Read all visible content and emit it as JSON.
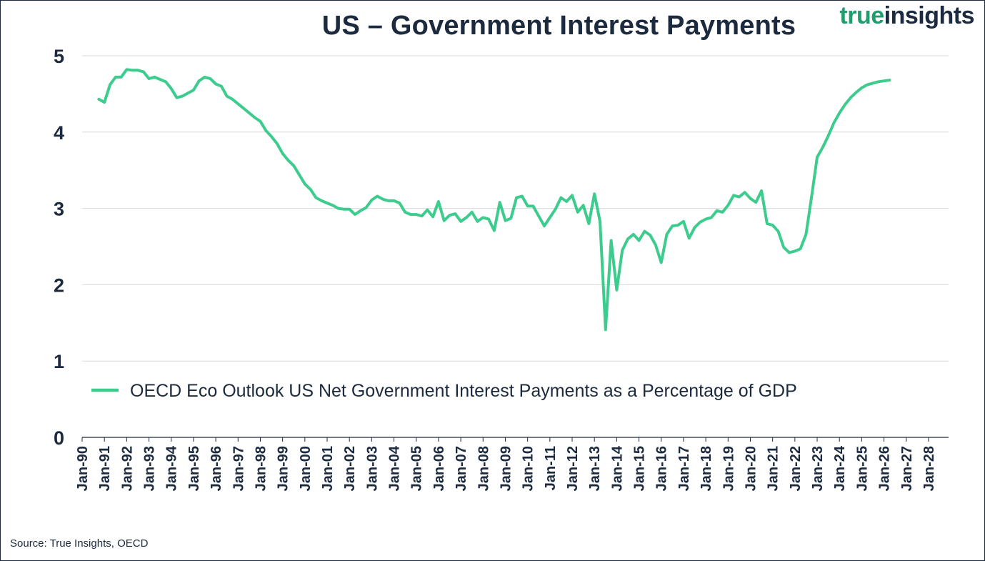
{
  "chart_title": "US – Government Interest Payments",
  "logo": {
    "word1": "true",
    "word2": "insights"
  },
  "source": "Source: True Insights, OECD",
  "colors": {
    "line": "#3ecc8e",
    "text": "#1b2a3e",
    "grid": "#d9d9d9",
    "axis": "#1b2a3e",
    "logo_green": "#1f9d6e"
  },
  "chart_data": {
    "type": "line",
    "title": "US – Government Interest Payments",
    "xlabel": "",
    "ylabel": "",
    "ylim": [
      0,
      5
    ],
    "yticks": [
      0,
      1,
      2,
      3,
      4,
      5
    ],
    "grid": "horizontal",
    "legend_position": "center-left",
    "xtick_labels": [
      "Jan-90",
      "Jan-91",
      "Jan-92",
      "Jan-93",
      "Jan-94",
      "Jan-95",
      "Jan-96",
      "Jan-97",
      "Jan-98",
      "Jan-99",
      "Jan-00",
      "Jan-01",
      "Jan-02",
      "Jan-03",
      "Jan-04",
      "Jan-05",
      "Jan-06",
      "Jan-07",
      "Jan-08",
      "Jan-09",
      "Jan-10",
      "Jan-11",
      "Jan-12",
      "Jan-13",
      "Jan-14",
      "Jan-15",
      "Jan-16",
      "Jan-17",
      "Jan-18",
      "Jan-19",
      "Jan-20",
      "Jan-21",
      "Jan-22",
      "Jan-23",
      "Jan-24",
      "Jan-25",
      "Jan-26",
      "Jan-27",
      "Jan-28"
    ],
    "series": [
      {
        "name": "OECD Eco Outlook US Net Government Interest Payments as a Percentage of GDP",
        "points": [
          [
            1990.75,
            4.43
          ],
          [
            1991.0,
            4.39
          ],
          [
            1991.25,
            4.62
          ],
          [
            1991.5,
            4.72
          ],
          [
            1991.75,
            4.72
          ],
          [
            1992.0,
            4.82
          ],
          [
            1992.25,
            4.81
          ],
          [
            1992.5,
            4.81
          ],
          [
            1992.75,
            4.79
          ],
          [
            1993.0,
            4.7
          ],
          [
            1993.25,
            4.72
          ],
          [
            1993.5,
            4.69
          ],
          [
            1993.75,
            4.66
          ],
          [
            1994.0,
            4.57
          ],
          [
            1994.25,
            4.45
          ],
          [
            1994.5,
            4.47
          ],
          [
            1994.75,
            4.51
          ],
          [
            1995.0,
            4.55
          ],
          [
            1995.25,
            4.67
          ],
          [
            1995.5,
            4.72
          ],
          [
            1995.75,
            4.7
          ],
          [
            1996.0,
            4.63
          ],
          [
            1996.25,
            4.6
          ],
          [
            1996.5,
            4.47
          ],
          [
            1996.75,
            4.43
          ],
          [
            1997.0,
            4.37
          ],
          [
            1997.25,
            4.31
          ],
          [
            1997.5,
            4.25
          ],
          [
            1997.75,
            4.19
          ],
          [
            1998.0,
            4.14
          ],
          [
            1998.25,
            4.02
          ],
          [
            1998.5,
            3.94
          ],
          [
            1998.75,
            3.85
          ],
          [
            1999.0,
            3.72
          ],
          [
            1999.25,
            3.63
          ],
          [
            1999.5,
            3.56
          ],
          [
            1999.75,
            3.44
          ],
          [
            2000.0,
            3.32
          ],
          [
            2000.25,
            3.25
          ],
          [
            2000.5,
            3.14
          ],
          [
            2000.75,
            3.1
          ],
          [
            2001.0,
            3.07
          ],
          [
            2001.25,
            3.04
          ],
          [
            2001.5,
            3.0
          ],
          [
            2001.75,
            2.99
          ],
          [
            2002.0,
            2.99
          ],
          [
            2002.25,
            2.92
          ],
          [
            2002.5,
            2.97
          ],
          [
            2002.75,
            3.01
          ],
          [
            2003.0,
            3.11
          ],
          [
            2003.25,
            3.16
          ],
          [
            2003.5,
            3.12
          ],
          [
            2003.75,
            3.1
          ],
          [
            2004.0,
            3.1
          ],
          [
            2004.25,
            3.07
          ],
          [
            2004.5,
            2.95
          ],
          [
            2004.75,
            2.92
          ],
          [
            2005.0,
            2.92
          ],
          [
            2005.25,
            2.9
          ],
          [
            2005.5,
            2.98
          ],
          [
            2005.75,
            2.89
          ],
          [
            2006.0,
            3.09
          ],
          [
            2006.25,
            2.84
          ],
          [
            2006.5,
            2.91
          ],
          [
            2006.75,
            2.93
          ],
          [
            2007.0,
            2.83
          ],
          [
            2007.25,
            2.88
          ],
          [
            2007.5,
            2.95
          ],
          [
            2007.75,
            2.83
          ],
          [
            2008.0,
            2.88
          ],
          [
            2008.25,
            2.86
          ],
          [
            2008.5,
            2.71
          ],
          [
            2008.75,
            3.08
          ],
          [
            2009.0,
            2.84
          ],
          [
            2009.25,
            2.87
          ],
          [
            2009.5,
            3.14
          ],
          [
            2009.75,
            3.16
          ],
          [
            2010.0,
            3.03
          ],
          [
            2010.25,
            3.03
          ],
          [
            2010.5,
            2.9
          ],
          [
            2010.75,
            2.77
          ],
          [
            2011.0,
            2.88
          ],
          [
            2011.25,
            2.99
          ],
          [
            2011.5,
            3.14
          ],
          [
            2011.75,
            3.09
          ],
          [
            2012.0,
            3.17
          ],
          [
            2012.25,
            2.95
          ],
          [
            2012.5,
            3.04
          ],
          [
            2012.75,
            2.8
          ],
          [
            2013.0,
            3.19
          ],
          [
            2013.25,
            2.83
          ],
          [
            2013.5,
            1.41
          ],
          [
            2013.75,
            2.58
          ],
          [
            2014.0,
            1.93
          ],
          [
            2014.25,
            2.45
          ],
          [
            2014.5,
            2.6
          ],
          [
            2014.75,
            2.66
          ],
          [
            2015.0,
            2.58
          ],
          [
            2015.25,
            2.7
          ],
          [
            2015.5,
            2.65
          ],
          [
            2015.75,
            2.52
          ],
          [
            2016.0,
            2.29
          ],
          [
            2016.25,
            2.66
          ],
          [
            2016.5,
            2.77
          ],
          [
            2016.75,
            2.78
          ],
          [
            2017.0,
            2.83
          ],
          [
            2017.25,
            2.61
          ],
          [
            2017.5,
            2.75
          ],
          [
            2017.75,
            2.82
          ],
          [
            2018.0,
            2.86
          ],
          [
            2018.25,
            2.88
          ],
          [
            2018.5,
            2.97
          ],
          [
            2018.75,
            2.95
          ],
          [
            2019.0,
            3.04
          ],
          [
            2019.25,
            3.17
          ],
          [
            2019.5,
            3.15
          ],
          [
            2019.75,
            3.21
          ],
          [
            2020.0,
            3.13
          ],
          [
            2020.25,
            3.08
          ],
          [
            2020.5,
            3.23
          ],
          [
            2020.75,
            2.8
          ],
          [
            2021.0,
            2.78
          ],
          [
            2021.25,
            2.7
          ],
          [
            2021.5,
            2.49
          ],
          [
            2021.75,
            2.42
          ],
          [
            2022.0,
            2.44
          ],
          [
            2022.25,
            2.47
          ],
          [
            2022.5,
            2.66
          ],
          [
            2022.75,
            3.15
          ],
          [
            2023.0,
            3.67
          ],
          [
            2023.25,
            3.8
          ],
          [
            2023.5,
            3.95
          ],
          [
            2023.75,
            4.12
          ],
          [
            2024.0,
            4.25
          ],
          [
            2024.25,
            4.36
          ],
          [
            2024.5,
            4.45
          ],
          [
            2024.75,
            4.52
          ],
          [
            2025.0,
            4.58
          ],
          [
            2025.25,
            4.62
          ],
          [
            2025.5,
            4.64
          ],
          [
            2025.75,
            4.66
          ],
          [
            2026.0,
            4.67
          ],
          [
            2026.25,
            4.68
          ]
        ]
      }
    ]
  }
}
